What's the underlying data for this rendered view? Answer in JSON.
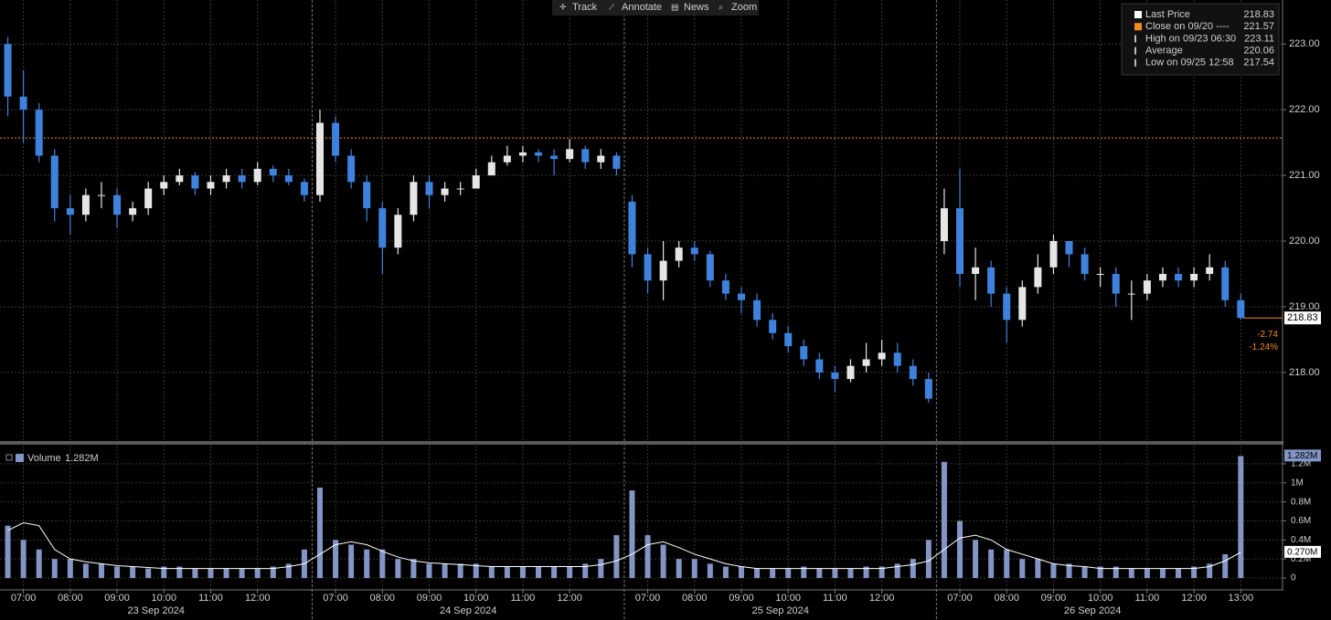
{
  "toolbar": [
    "Track",
    "Annotate",
    "News",
    "Zoom"
  ],
  "chart_data": [
    {
      "type": "candlestick",
      "up_color": "#e6e6e6",
      "down_color": "#3f82dd",
      "xlim": [
        0,
        82
      ],
      "xticks": [
        {
          "value": 1.5,
          "label": "07:00"
        },
        {
          "value": 4.5,
          "label": "08:00"
        },
        {
          "value": 7.5,
          "label": "09:00"
        },
        {
          "value": 10.5,
          "label": "10:00"
        },
        {
          "value": 13.5,
          "label": "11:00"
        },
        {
          "value": 16.5,
          "label": "12:00"
        },
        {
          "value": 21.5,
          "label": "07:00"
        },
        {
          "value": 24.5,
          "label": "08:00"
        },
        {
          "value": 27.5,
          "label": "09:00"
        },
        {
          "value": 30.5,
          "label": "10:00"
        },
        {
          "value": 33.5,
          "label": "11:00"
        },
        {
          "value": 36.5,
          "label": "12:00"
        },
        {
          "value": 41.5,
          "label": "07:00"
        },
        {
          "value": 44.5,
          "label": "08:00"
        },
        {
          "value": 47.5,
          "label": "09:00"
        },
        {
          "value": 50.5,
          "label": "10:00"
        },
        {
          "value": 53.5,
          "label": "11:00"
        },
        {
          "value": 56.5,
          "label": "12:00"
        },
        {
          "value": 61.5,
          "label": "07:00"
        },
        {
          "value": 64.5,
          "label": "08:00"
        },
        {
          "value": 67.5,
          "label": "09:00"
        },
        {
          "value": 70.5,
          "label": "10:00"
        },
        {
          "value": 73.5,
          "label": "11:00"
        },
        {
          "value": 76.5,
          "label": "12:00"
        },
        {
          "value": 79.5,
          "label": "13:00"
        }
      ],
      "days": [
        "23 Sep 2024",
        "24 Sep 2024",
        "25 Sep 2024",
        "26 Sep 2024"
      ],
      "ylim": [
        216.97,
        223.67
      ],
      "yticks": [
        {
          "value": 218,
          "label": "218.00"
        },
        {
          "value": 219,
          "label": "219.00"
        },
        {
          "value": 220,
          "label": "220.00"
        },
        {
          "value": 221,
          "label": "221.00"
        },
        {
          "value": 222,
          "label": "222.00"
        },
        {
          "value": 223,
          "label": "223.00"
        }
      ],
      "grid": true,
      "open": [
        223.0,
        222.2,
        222.0,
        221.3,
        220.5,
        220.4,
        220.7,
        220.7,
        220.4,
        220.5,
        220.8,
        220.9,
        221.0,
        220.8,
        220.9,
        221.0,
        220.9,
        221.1,
        221.0,
        220.9,
        220.7,
        221.8,
        221.3,
        220.9,
        220.5,
        219.9,
        220.4,
        220.9,
        220.7,
        220.8,
        220.8,
        221.0,
        221.2,
        221.3,
        221.35,
        221.3,
        221.25,
        221.4,
        221.2,
        221.3,
        220.6,
        219.8,
        219.4,
        219.7,
        219.9,
        219.8,
        219.4,
        219.2,
        219.1,
        218.8,
        218.6,
        218.4,
        218.2,
        218.0,
        217.9,
        218.1,
        218.2,
        218.3,
        218.1,
        217.9,
        220.0,
        220.5,
        219.5,
        219.6,
        219.2,
        218.8,
        219.3,
        219.6,
        220.0,
        219.8,
        219.5,
        219.5,
        219.2,
        219.2,
        219.4,
        219.5,
        219.4,
        219.5,
        219.6,
        219.1
      ],
      "high": [
        223.11,
        222.6,
        222.1,
        221.4,
        220.7,
        220.8,
        220.9,
        220.8,
        220.6,
        220.9,
        221.0,
        221.1,
        221.05,
        221.0,
        221.1,
        221.1,
        221.2,
        221.15,
        221.1,
        220.95,
        222.0,
        221.9,
        221.4,
        221.0,
        220.6,
        220.5,
        221.0,
        221.0,
        220.9,
        220.9,
        221.1,
        221.3,
        221.45,
        221.45,
        221.4,
        221.4,
        221.55,
        221.45,
        221.4,
        221.35,
        220.7,
        219.9,
        220.0,
        220.0,
        220.0,
        219.85,
        219.5,
        219.3,
        219.2,
        218.9,
        218.7,
        218.5,
        218.3,
        218.1,
        218.2,
        218.45,
        218.5,
        218.45,
        218.2,
        218.0,
        220.8,
        221.1,
        219.9,
        219.7,
        219.3,
        219.4,
        219.8,
        220.1,
        220.0,
        219.9,
        219.6,
        219.6,
        219.4,
        219.5,
        219.6,
        219.6,
        219.6,
        219.8,
        219.7,
        219.2
      ],
      "low": [
        221.9,
        221.5,
        221.2,
        220.3,
        220.1,
        220.3,
        220.5,
        220.2,
        220.3,
        220.4,
        220.7,
        220.85,
        220.7,
        220.7,
        220.8,
        220.8,
        220.85,
        220.9,
        220.85,
        220.6,
        220.6,
        221.2,
        220.8,
        220.3,
        219.5,
        219.8,
        220.3,
        220.5,
        220.6,
        220.7,
        220.8,
        221.0,
        221.15,
        221.2,
        221.2,
        221.0,
        221.2,
        221.1,
        221.1,
        221.0,
        219.6,
        219.2,
        219.1,
        219.6,
        219.7,
        219.3,
        219.1,
        218.9,
        218.7,
        218.5,
        218.3,
        218.1,
        217.9,
        217.7,
        217.85,
        218.0,
        218.1,
        218.0,
        217.8,
        217.54,
        219.8,
        219.3,
        219.1,
        219.0,
        218.45,
        218.7,
        219.2,
        219.5,
        219.6,
        219.4,
        219.3,
        219.0,
        218.8,
        219.1,
        219.3,
        219.3,
        219.3,
        219.4,
        219.0,
        218.8
      ],
      "close": [
        222.2,
        222.0,
        221.3,
        220.5,
        220.4,
        220.7,
        220.7,
        220.4,
        220.5,
        220.8,
        220.9,
        221.0,
        220.8,
        220.9,
        221.0,
        220.9,
        221.1,
        221.0,
        220.9,
        220.7,
        221.8,
        221.3,
        220.9,
        220.5,
        219.9,
        220.4,
        220.9,
        220.7,
        220.8,
        220.8,
        221.0,
        221.2,
        221.3,
        221.35,
        221.3,
        221.25,
        221.4,
        221.2,
        221.3,
        221.1,
        219.8,
        219.4,
        219.7,
        219.9,
        219.8,
        219.4,
        219.2,
        219.1,
        218.8,
        218.6,
        218.4,
        218.2,
        218.0,
        217.9,
        218.1,
        218.2,
        218.3,
        218.1,
        217.9,
        217.6,
        220.5,
        219.5,
        219.6,
        219.2,
        218.8,
        219.3,
        219.6,
        220.0,
        219.8,
        219.5,
        219.5,
        219.2,
        219.2,
        219.4,
        219.5,
        219.4,
        219.5,
        219.6,
        219.1,
        218.83
      ],
      "legend": [
        {
          "label": "Last Price",
          "value": 218.83,
          "color": "#ffffff"
        },
        {
          "label": "Close on 09/20 ----",
          "value": 221.57,
          "color": "#f28c1e"
        },
        {
          "label": "High on 09/23 06:30",
          "value": 223.11,
          "color": "#bbbbbb"
        },
        {
          "label": "Average",
          "value": 220.06,
          "color": "#bbbbbb"
        },
        {
          "label": "Low on 09/25 12:58",
          "value": 217.54,
          "color": "#bbbbbb"
        }
      ],
      "change": -2.74,
      "change_pct": {
        "value": -1.24,
        "label": "-1.24%"
      }
    },
    {
      "type": "volume",
      "title": "Volume",
      "color": "#8395c4",
      "ylim": [
        -0.115,
        1.372
      ],
      "yticks": [
        0,
        {
          "value": 0.2,
          "label": "0.2M"
        },
        {
          "value": 0.4,
          "label": "0.4M"
        },
        {
          "value": 0.6,
          "label": "0.6M"
        },
        {
          "value": 0.8,
          "label": "0.8M"
        },
        {
          "value": 1,
          "label": "1M"
        },
        {
          "value": 1.2,
          "label": "1.2M"
        }
      ],
      "values": [
        0.55,
        0.4,
        0.3,
        0.2,
        0.2,
        0.15,
        0.15,
        0.12,
        0.12,
        0.1,
        0.12,
        0.12,
        0.1,
        0.1,
        0.1,
        0.1,
        0.1,
        0.12,
        0.15,
        0.3,
        0.95,
        0.4,
        0.35,
        0.3,
        0.3,
        0.2,
        0.2,
        0.15,
        0.15,
        0.15,
        0.15,
        0.12,
        0.12,
        0.12,
        0.12,
        0.12,
        0.12,
        0.15,
        0.2,
        0.45,
        0.92,
        0.45,
        0.35,
        0.2,
        0.2,
        0.15,
        0.12,
        0.12,
        0.1,
        0.1,
        0.1,
        0.12,
        0.1,
        0.1,
        0.1,
        0.12,
        0.12,
        0.15,
        0.2,
        0.4,
        1.22,
        0.6,
        0.4,
        0.3,
        0.3,
        0.2,
        0.2,
        0.15,
        0.15,
        0.12,
        0.12,
        0.12,
        0.1,
        0.1,
        0.1,
        0.1,
        0.12,
        0.15,
        0.25,
        1.282
      ],
      "average_values": [
        0.5,
        0.58,
        0.55,
        0.3,
        0.2,
        0.17,
        0.15,
        0.13,
        0.12,
        0.11,
        0.1,
        0.1,
        0.1,
        0.1,
        0.1,
        0.1,
        0.1,
        0.1,
        0.12,
        0.15,
        0.25,
        0.35,
        0.38,
        0.35,
        0.28,
        0.22,
        0.18,
        0.16,
        0.15,
        0.14,
        0.13,
        0.12,
        0.12,
        0.12,
        0.12,
        0.12,
        0.12,
        0.12,
        0.14,
        0.18,
        0.25,
        0.35,
        0.38,
        0.32,
        0.25,
        0.2,
        0.15,
        0.12,
        0.1,
        0.1,
        0.1,
        0.1,
        0.1,
        0.1,
        0.1,
        0.1,
        0.1,
        0.12,
        0.14,
        0.18,
        0.3,
        0.42,
        0.45,
        0.4,
        0.3,
        0.25,
        0.2,
        0.15,
        0.13,
        0.12,
        0.1,
        0.1,
        0.1,
        0.1,
        0.1,
        0.1,
        0.1,
        0.12,
        0.18,
        0.27
      ],
      "last_volume": {
        "value": 1.282,
        "label": "1.282M"
      },
      "last_average": {
        "value": 0.27,
        "label": "0.270M"
      }
    }
  ]
}
